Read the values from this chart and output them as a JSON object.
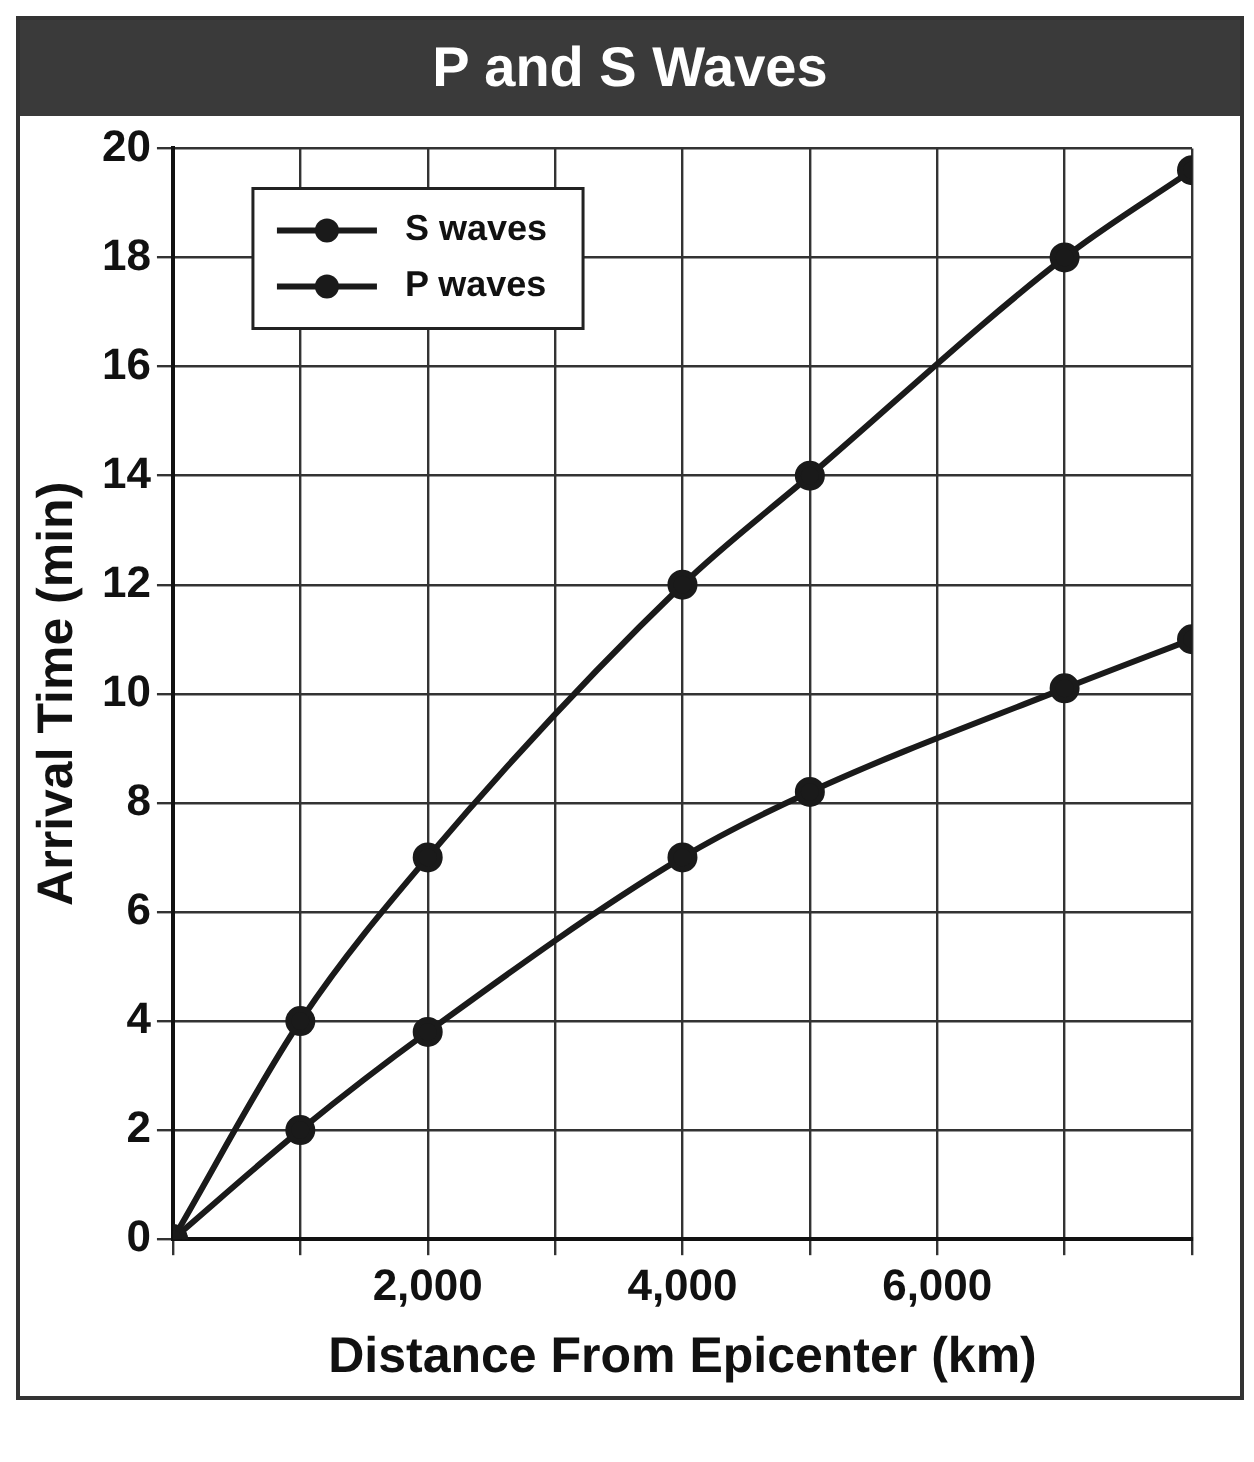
{
  "chart_data": {
    "type": "line",
    "title": "P and S Waves",
    "xlabel": "Distance From Epicenter (km)",
    "ylabel": "Arrival Time (min)",
    "x": [
      0,
      1000,
      2000,
      4000,
      5000,
      7000,
      8000
    ],
    "series": [
      {
        "name": "S waves",
        "color": "#1a1a1a",
        "values": [
          0,
          4,
          7,
          12,
          14,
          18,
          19.6
        ]
      },
      {
        "name": "P waves",
        "color": "#1a1a1a",
        "values": [
          0,
          2,
          3.8,
          7,
          8.2,
          10.1,
          11
        ]
      }
    ],
    "xlim": [
      0,
      8000
    ],
    "ylim": [
      0,
      20
    ],
    "xticks": [
      {
        "value": 0,
        "label": null
      },
      {
        "value": 1000,
        "label": null
      },
      {
        "value": 2000,
        "label": "2,000"
      },
      {
        "value": 3000,
        "label": null
      },
      {
        "value": 4000,
        "label": "4,000"
      },
      {
        "value": 5000,
        "label": null
      },
      {
        "value": 6000,
        "label": "6,000"
      },
      {
        "value": 7000,
        "label": null
      },
      {
        "value": 8000,
        "label": null
      }
    ],
    "yticks": [
      0,
      2,
      4,
      6,
      8,
      10,
      12,
      14,
      16,
      18,
      20
    ],
    "grid": true,
    "legend": "top left",
    "marker": "circle",
    "line_style": "solid"
  }
}
